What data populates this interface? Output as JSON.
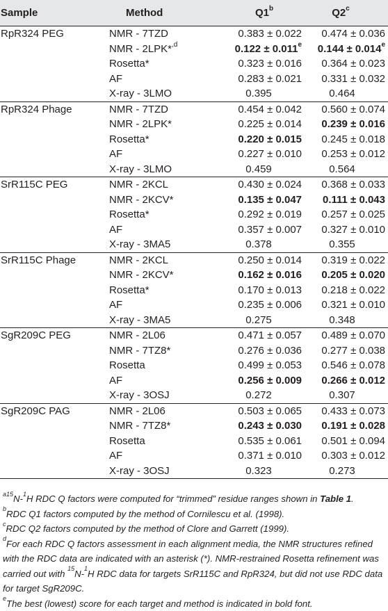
{
  "header": {
    "sample": "Sample",
    "method": "Method",
    "q1": "Q1",
    "q1_sup": "b",
    "q2": "Q2",
    "q2_sup": "c"
  },
  "groups": [
    {
      "sample": "RpR324 PEG",
      "rows": [
        {
          "method": "NMR - 7TZD",
          "method_sup": "",
          "q1": "0.383 ± 0.022",
          "q1_sup": "",
          "q1_bold": false,
          "q2": "0.474 ± 0.036",
          "q2_sup": "",
          "q2_bold": false
        },
        {
          "method": "NMR - 2LPK*",
          "method_sup": ",d",
          "q1": "0.122 ± 0.011",
          "q1_sup": "e",
          "q1_bold": true,
          "q2": "0.144 ± 0.014",
          "q2_sup": "e",
          "q2_bold": true
        },
        {
          "method": "Rosetta*",
          "method_sup": "",
          "q1": "0.323 ± 0.016",
          "q1_sup": "",
          "q1_bold": false,
          "q2": "0.364 ± 0.023",
          "q2_sup": "",
          "q2_bold": false
        },
        {
          "method": "AF",
          "method_sup": "",
          "q1": "0.283 ± 0.021",
          "q1_sup": "",
          "q1_bold": false,
          "q2": "0.331 ± 0.032",
          "q2_sup": "",
          "q2_bold": false
        },
        {
          "method": "X-ray - 3LMO",
          "method_sup": "",
          "q1": "0.395",
          "q1_sup": "",
          "q1_bold": false,
          "q2": "0.464",
          "q2_sup": "",
          "q2_bold": false
        }
      ]
    },
    {
      "sample": "RpR324 Phage",
      "rows": [
        {
          "method": "NMR - 7TZD",
          "method_sup": "",
          "q1": "0.454 ± 0.042",
          "q1_sup": "",
          "q1_bold": false,
          "q2": "0.560 ± 0.074",
          "q2_sup": "",
          "q2_bold": false
        },
        {
          "method": "NMR - 2LPK*",
          "method_sup": "",
          "q1": "0.225 ± 0.014",
          "q1_sup": "",
          "q1_bold": false,
          "q2": "0.239 ± 0.016",
          "q2_sup": "",
          "q2_bold": true
        },
        {
          "method": "Rosetta*",
          "method_sup": "",
          "q1": "0.220 ± 0.015",
          "q1_sup": "",
          "q1_bold": true,
          "q2": "0.245 ± 0.018",
          "q2_sup": "",
          "q2_bold": false
        },
        {
          "method": "AF",
          "method_sup": "",
          "q1": "0.227 ± 0.010",
          "q1_sup": "",
          "q1_bold": false,
          "q2": "0.253 ± 0.012",
          "q2_sup": "",
          "q2_bold": false
        },
        {
          "method": "X-ray - 3LMO",
          "method_sup": "",
          "q1": "0.459",
          "q1_sup": "",
          "q1_bold": false,
          "q2": "0.564",
          "q2_sup": "",
          "q2_bold": false
        }
      ]
    },
    {
      "sample": "SrR115C PEG",
      "rows": [
        {
          "method": "NMR - 2KCL",
          "method_sup": "",
          "q1": "0.430 ± 0.024",
          "q1_sup": "",
          "q1_bold": false,
          "q2": "0.368 ± 0.033",
          "q2_sup": "",
          "q2_bold": false
        },
        {
          "method": "NMR - 2KCV*",
          "method_sup": "",
          "q1": "0.135 ± 0.047",
          "q1_sup": "",
          "q1_bold": true,
          "q2": "0.111 ± 0.043",
          "q2_sup": "",
          "q2_bold": true
        },
        {
          "method": "Rosetta*",
          "method_sup": "",
          "q1": "0.292 ± 0.019",
          "q1_sup": "",
          "q1_bold": false,
          "q2": "0.257 ± 0.025",
          "q2_sup": "",
          "q2_bold": false
        },
        {
          "method": "AF",
          "method_sup": "",
          "q1": "0.357 ± 0.007",
          "q1_sup": "",
          "q1_bold": false,
          "q2": "0.327 ± 0.010",
          "q2_sup": "",
          "q2_bold": false
        },
        {
          "method": "X-ray - 3MA5",
          "method_sup": "",
          "q1": "0.378",
          "q1_sup": "",
          "q1_bold": false,
          "q2": "0.355",
          "q2_sup": "",
          "q2_bold": false
        }
      ]
    },
    {
      "sample": "SrR115C Phage",
      "rows": [
        {
          "method": "NMR - 2KCL",
          "method_sup": "",
          "q1": "0.250 ± 0.014",
          "q1_sup": "",
          "q1_bold": false,
          "q2": "0.319 ± 0.022",
          "q2_sup": "",
          "q2_bold": false
        },
        {
          "method": "NMR - 2KCV*",
          "method_sup": "",
          "q1": "0.162 ± 0.016",
          "q1_sup": "",
          "q1_bold": true,
          "q2": "0.205 ± 0.020",
          "q2_sup": "",
          "q2_bold": true
        },
        {
          "method": "Rosetta*",
          "method_sup": "",
          "q1": "0.170 ± 0.013",
          "q1_sup": "",
          "q1_bold": false,
          "q2": "0.218 ± 0.022",
          "q2_sup": "",
          "q2_bold": false
        },
        {
          "method": "AF",
          "method_sup": "",
          "q1": "0.235 ± 0.006",
          "q1_sup": "",
          "q1_bold": false,
          "q2": "0.321 ± 0.010",
          "q2_sup": "",
          "q2_bold": false
        },
        {
          "method": "X-ray - 3MA5",
          "method_sup": "",
          "q1": "0.275",
          "q1_sup": "",
          "q1_bold": false,
          "q2": "0.348",
          "q2_sup": "",
          "q2_bold": false
        }
      ]
    },
    {
      "sample": "SgR209C PEG",
      "rows": [
        {
          "method": "NMR - 2L06",
          "method_sup": "",
          "q1": "0.471 ± 0.057",
          "q1_sup": "",
          "q1_bold": false,
          "q2": "0.489 ± 0.070",
          "q2_sup": "",
          "q2_bold": false
        },
        {
          "method": "NMR - 7TZ8*",
          "method_sup": "",
          "q1": "0.276 ± 0.036",
          "q1_sup": "",
          "q1_bold": false,
          "q2": "0.277 ± 0.038",
          "q2_sup": "",
          "q2_bold": false
        },
        {
          "method": "Rosetta",
          "method_sup": "",
          "q1": "0.499 ± 0.053",
          "q1_sup": "",
          "q1_bold": false,
          "q2": "0.546 ± 0.078",
          "q2_sup": "",
          "q2_bold": false
        },
        {
          "method": "AF",
          "method_sup": "",
          "q1": "0.256 ± 0.009",
          "q1_sup": "",
          "q1_bold": true,
          "q2": "0.266 ± 0.012",
          "q2_sup": "",
          "q2_bold": true
        },
        {
          "method": "X-ray - 3OSJ",
          "method_sup": "",
          "q1": "0.272",
          "q1_sup": "",
          "q1_bold": false,
          "q2": "0.307",
          "q2_sup": "",
          "q2_bold": false
        }
      ]
    },
    {
      "sample": "SgR209C PAG",
      "rows": [
        {
          "method": "NMR - 2L06",
          "method_sup": "",
          "q1": "0.503 ± 0.065",
          "q1_sup": "",
          "q1_bold": false,
          "q2": "0.433 ± 0.073",
          "q2_sup": "",
          "q2_bold": false
        },
        {
          "method": "NMR - 7TZ8*",
          "method_sup": "",
          "q1": "0.243 ± 0.030",
          "q1_sup": "",
          "q1_bold": true,
          "q2": "0.191 ± 0.028",
          "q2_sup": "",
          "q2_bold": true
        },
        {
          "method": "Rosetta",
          "method_sup": "",
          "q1": "0.535 ± 0.061",
          "q1_sup": "",
          "q1_bold": false,
          "q2": "0.501 ± 0.094",
          "q2_sup": "",
          "q2_bold": false
        },
        {
          "method": "AF",
          "method_sup": "",
          "q1": "0.371 ± 0.010",
          "q1_sup": "",
          "q1_bold": false,
          "q2": "0.303 ± 0.012",
          "q2_sup": "",
          "q2_bold": false
        },
        {
          "method": "X-ray - 3OSJ",
          "method_sup": "",
          "q1": "0.323",
          "q1_sup": "",
          "q1_bold": false,
          "q2": "0.273",
          "q2_sup": "",
          "q2_bold": false
        }
      ]
    }
  ],
  "footnotes": {
    "a": {
      "marker": "a",
      "pre_sup1": "15",
      "t1": "N-",
      "pre_sup2": "1",
      "t2": "H RDC Q factors were computed for “trimmed” residue ranges shown in ",
      "bold": "Table 1",
      "t3": "."
    },
    "b": {
      "marker": "b",
      "text": "RDC Q1 factors computed by the method of Cornilescu et al. (1998)."
    },
    "c": {
      "marker": "c",
      "text": "RDC Q2 factors computed by the method of Clore and Garrett (1999)."
    },
    "d": {
      "marker": "d",
      "t1": "For each RDC Q factors assessment in each alignment media, the NMR structures refined with the RDC data are indicated with an asterisk (*). NMR-restrained Rosetta refinement was carried out with ",
      "sup1": "15",
      "t2": "N-",
      "sup2": "1",
      "t3": "H RDC data for targets SrR115C and RpR324, but did not use RDC data for target SgR209C."
    },
    "e": {
      "marker": "e",
      "text": "The best (lowest) score for each target and method is indicated in bold font."
    }
  }
}
